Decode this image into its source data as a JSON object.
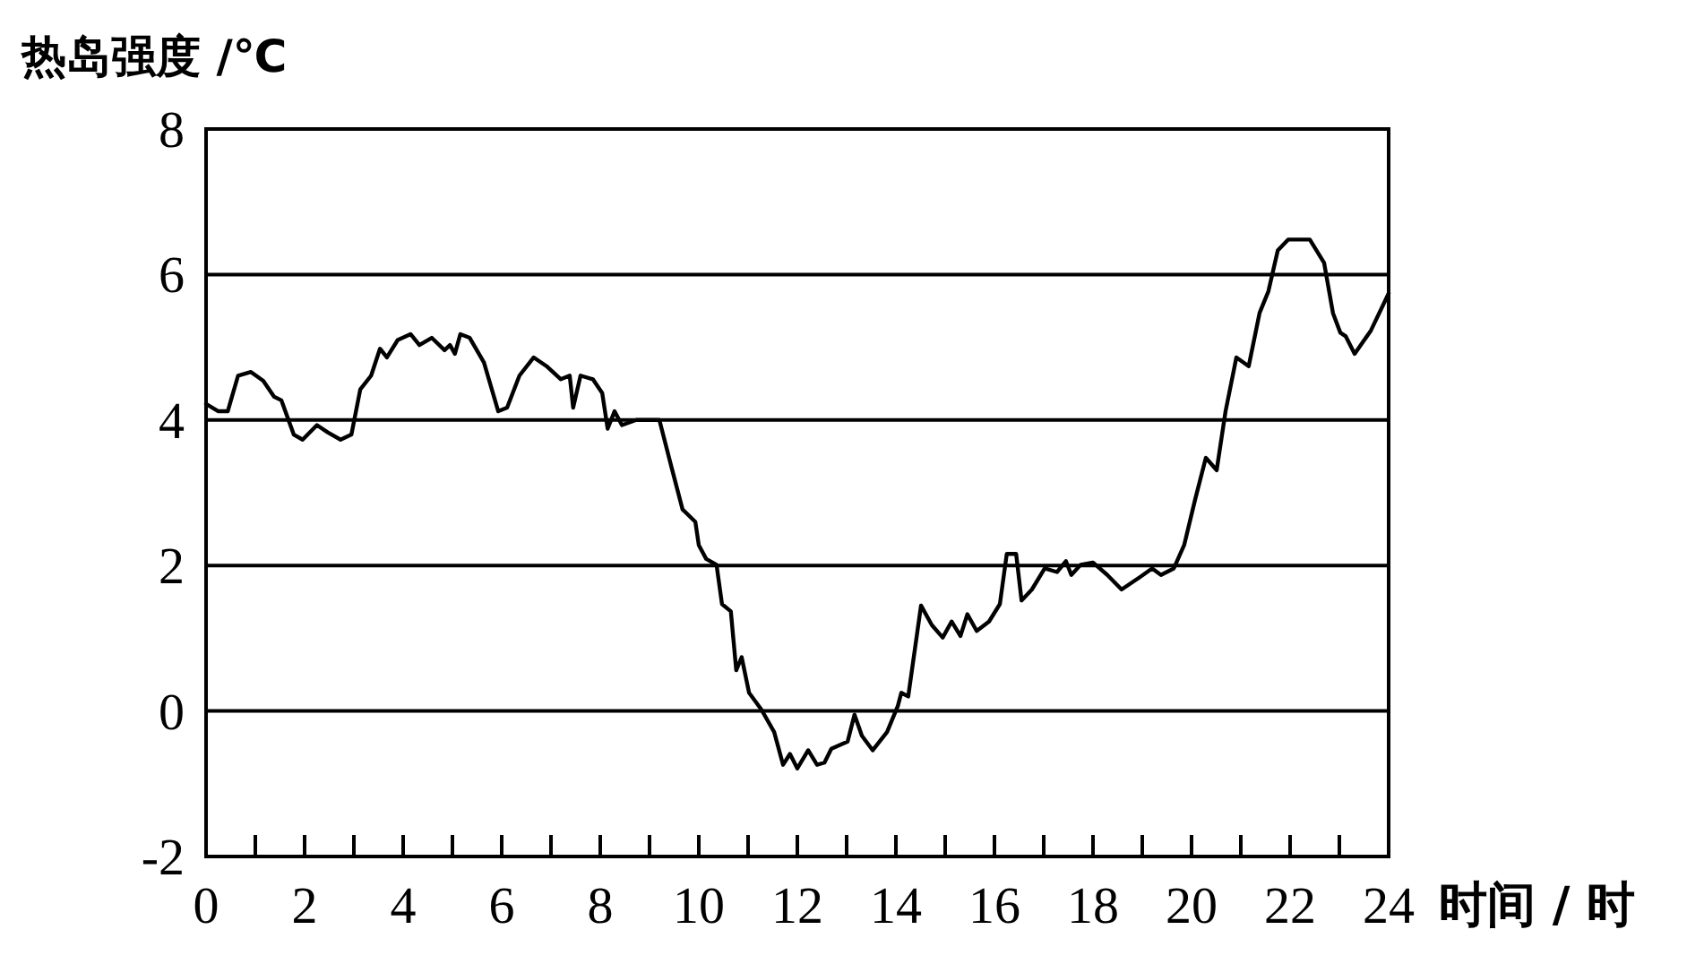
{
  "chart_data": {
    "type": "line",
    "ylabel": "热岛强度 /℃",
    "xlabel": "时间 / 时",
    "grid": "y",
    "color": "#000000",
    "xlim": [
      0,
      24
    ],
    "ylim": [
      -2,
      8
    ],
    "yticks": [
      -2,
      0,
      2,
      4,
      6,
      8
    ],
    "xticks": [
      0,
      {
        "value": 1,
        "label": null
      },
      2,
      {
        "value": 3,
        "label": null
      },
      4,
      {
        "value": 5,
        "label": null
      },
      6,
      {
        "value": 7,
        "label": null
      },
      8,
      {
        "value": 9,
        "label": null
      },
      10,
      {
        "value": 11,
        "label": null
      },
      12,
      {
        "value": 13,
        "label": null
      },
      14,
      {
        "value": 15,
        "label": null
      },
      16,
      {
        "value": 17,
        "label": null
      },
      18,
      {
        "value": 19,
        "label": null
      },
      20,
      {
        "value": 21,
        "label": null
      },
      22,
      {
        "value": 23,
        "label": null
      },
      24
    ],
    "x": [
      0,
      0.25,
      0.44,
      0.65,
      0.91,
      1.16,
      1.38,
      1.53,
      1.78,
      1.96,
      2.25,
      2.47,
      2.73,
      2.95,
      3.13,
      3.35,
      3.53,
      3.67,
      3.89,
      4.15,
      4.33,
      4.58,
      4.84,
      4.95,
      5.05,
      5.16,
      5.35,
      5.64,
      5.93,
      6.11,
      6.36,
      6.65,
      6.91,
      7.2,
      7.38,
      7.45,
      7.6,
      7.85,
      8.04,
      8.15,
      8.29,
      8.44,
      8.73,
      9.2,
      9.45,
      9.67,
      9.93,
      10.0,
      10.15,
      10.36,
      10.47,
      10.65,
      10.76,
      10.87,
      11.02,
      11.27,
      11.53,
      11.71,
      11.85,
      12.0,
      12.22,
      12.4,
      12.55,
      12.69,
      13.02,
      13.16,
      13.31,
      13.53,
      13.82,
      14.04,
      14.11,
      14.25,
      14.51,
      14.73,
      14.95,
      15.13,
      15.31,
      15.45,
      15.64,
      15.89,
      16.11,
      16.25,
      16.44,
      16.55,
      16.76,
      17.02,
      17.27,
      17.45,
      17.56,
      17.75,
      18.0,
      18.29,
      18.58,
      18.95,
      19.2,
      19.38,
      19.64,
      19.85,
      20.07,
      20.29,
      20.51,
      20.69,
      20.91,
      21.16,
      21.38,
      21.56,
      21.75,
      21.96,
      22.4,
      22.69,
      22.87,
      23.02,
      23.13,
      23.31,
      23.64,
      24.0
    ],
    "values": [
      4.22,
      4.12,
      4.12,
      4.61,
      4.66,
      4.54,
      4.32,
      4.27,
      3.8,
      3.73,
      3.93,
      3.83,
      3.73,
      3.8,
      4.42,
      4.61,
      4.98,
      4.86,
      5.1,
      5.18,
      5.03,
      5.13,
      4.96,
      5.03,
      4.91,
      5.18,
      5.13,
      4.79,
      4.12,
      4.17,
      4.61,
      4.86,
      4.74,
      4.56,
      4.61,
      4.17,
      4.61,
      4.56,
      4.37,
      3.88,
      4.12,
      3.93,
      4.0,
      4.0,
      3.34,
      2.77,
      2.6,
      2.28,
      2.09,
      2.01,
      1.47,
      1.37,
      0.56,
      0.74,
      0.25,
      0.02,
      -0.29,
      -0.74,
      -0.59,
      -0.79,
      -0.54,
      -0.74,
      -0.71,
      -0.52,
      -0.42,
      -0.05,
      -0.34,
      -0.54,
      -0.29,
      0.07,
      0.25,
      0.2,
      1.45,
      1.18,
      1.01,
      1.23,
      1.03,
      1.33,
      1.1,
      1.23,
      1.47,
      2.16,
      2.16,
      1.52,
      1.67,
      1.96,
      1.91,
      2.06,
      1.87,
      2.01,
      2.04,
      1.87,
      1.67,
      1.84,
      1.96,
      1.87,
      1.96,
      2.28,
      2.9,
      3.48,
      3.31,
      4.12,
      4.86,
      4.74,
      5.47,
      5.77,
      6.33,
      6.48,
      6.48,
      6.16,
      5.47,
      5.2,
      5.15,
      4.91,
      5.23,
      5.74
    ]
  }
}
